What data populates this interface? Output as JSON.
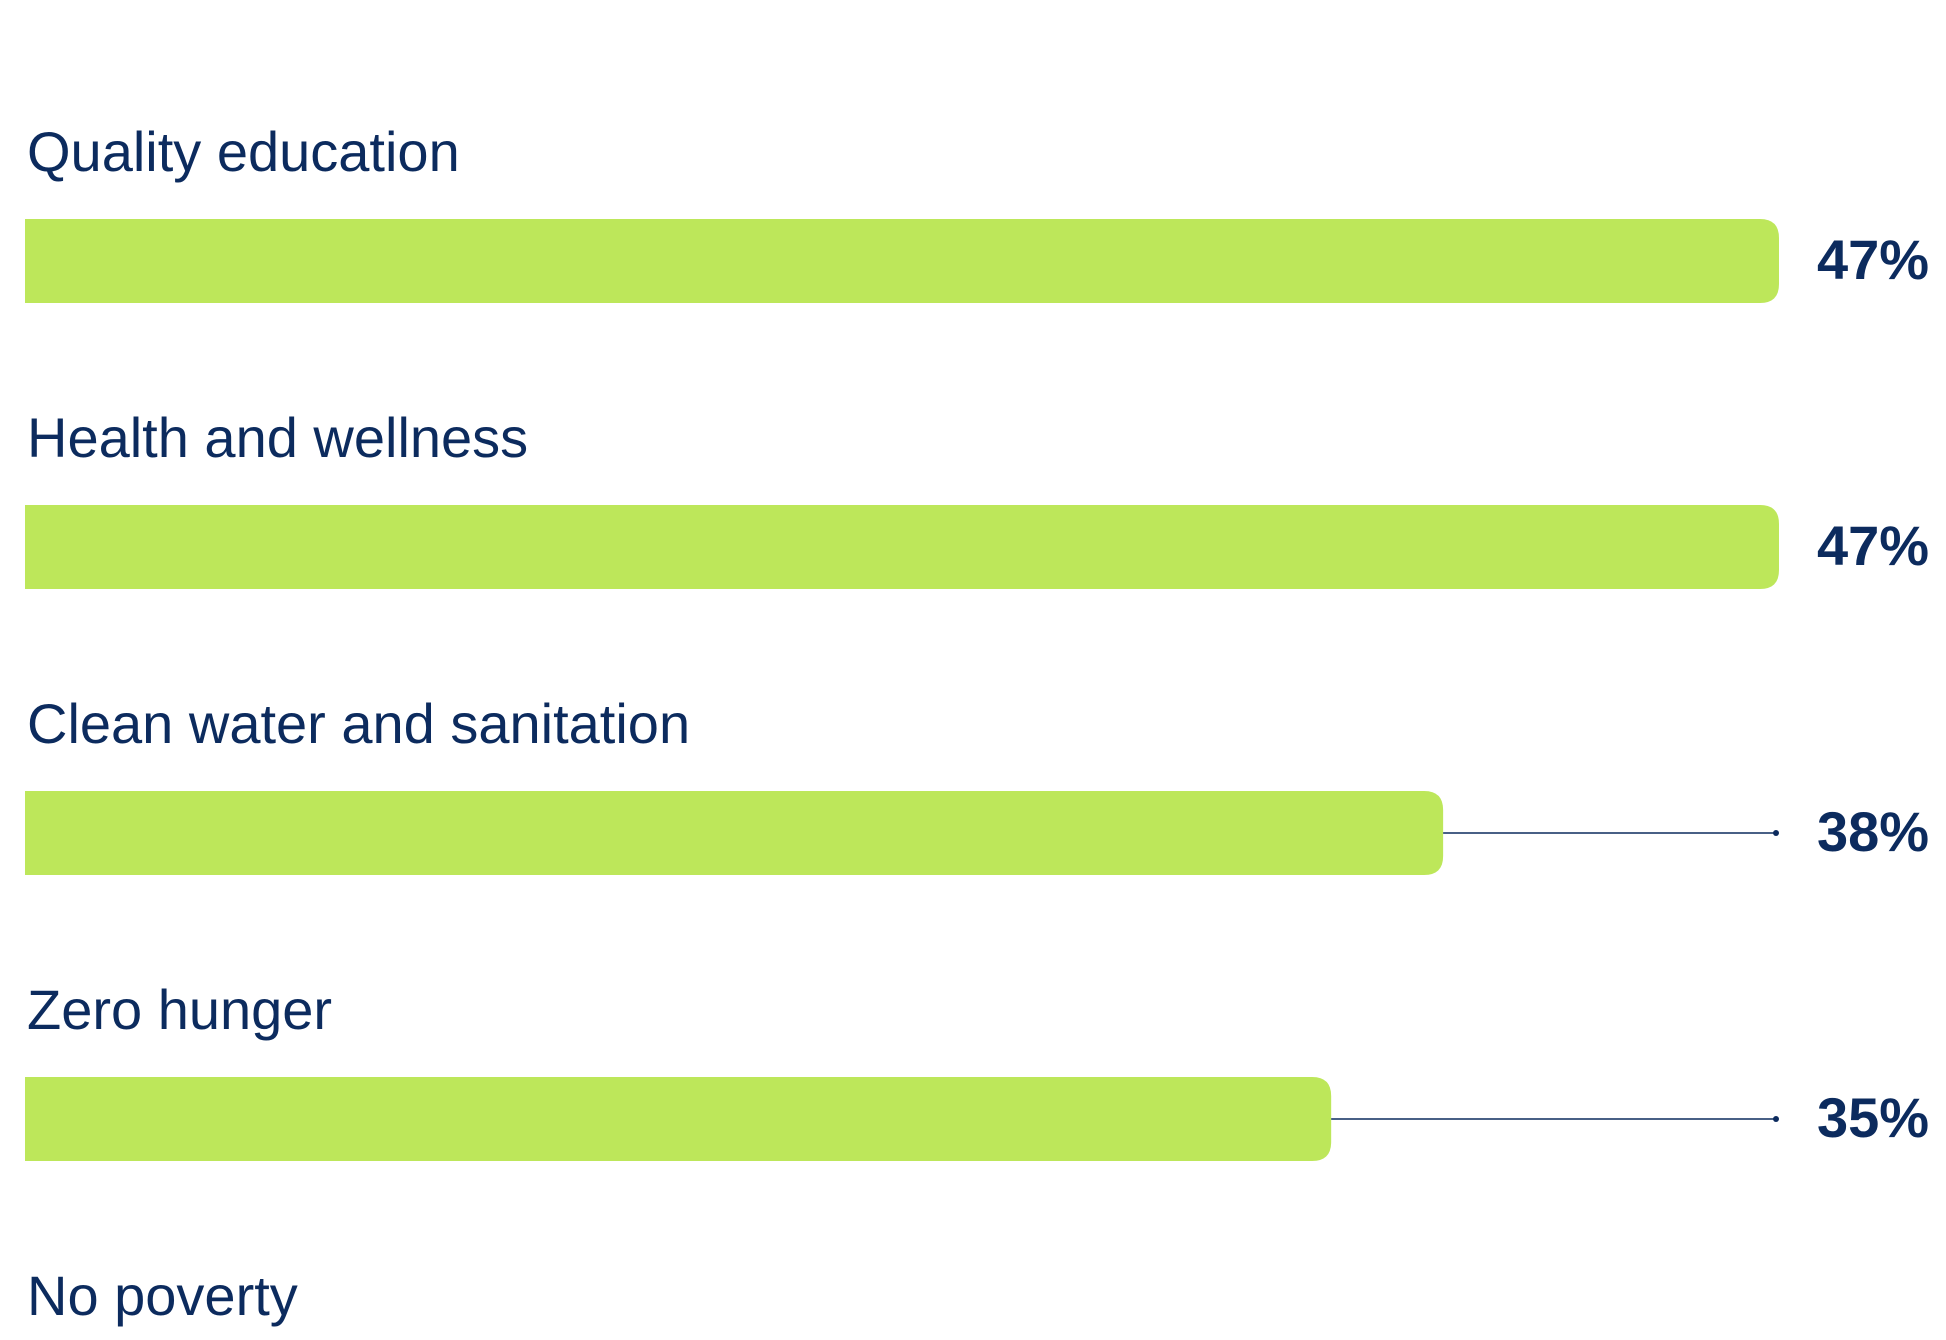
{
  "chart_data": {
    "type": "bar",
    "orientation": "horizontal",
    "categories": [
      "Quality education",
      "Health and wellness",
      "Clean water and sanitation",
      "Zero hunger",
      "No poverty"
    ],
    "values": [
      47,
      47,
      38,
      35,
      null
    ],
    "value_labels": [
      "47%",
      "47%",
      "38%",
      "35%",
      null
    ],
    "color": "#bde75a",
    "xlim": [
      0,
      47
    ]
  }
}
